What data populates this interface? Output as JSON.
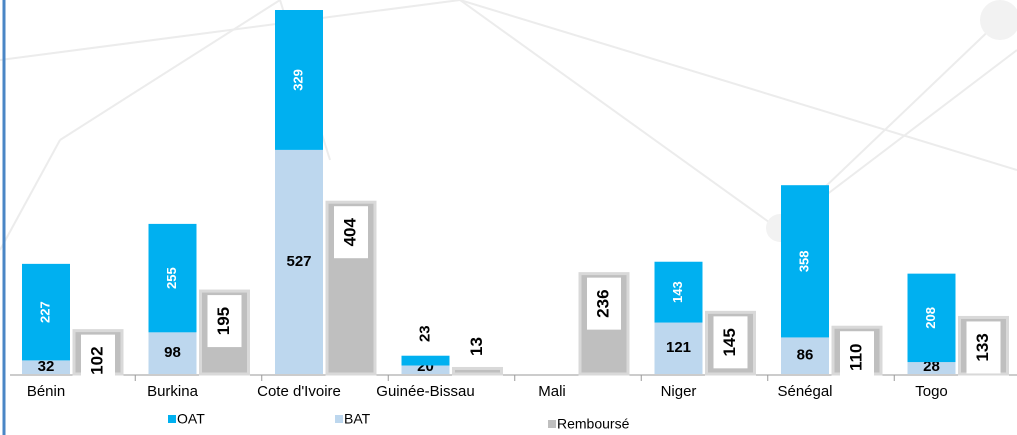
{
  "chart_data": {
    "type": "bar",
    "categories": [
      "Bénin",
      "Burkina",
      "Cote d'Ivoire",
      "Guinée-Bissau",
      "Mali",
      "Niger",
      "Sénégal",
      "Togo"
    ],
    "series": [
      {
        "name": "OAT",
        "color": "#00b0f0",
        "values": [
          227,
          255,
          329,
          23,
          null,
          143,
          358,
          208
        ]
      },
      {
        "name": "BAT",
        "color": "#bdd7ee",
        "values": [
          32,
          98,
          527,
          20,
          null,
          121,
          86,
          28
        ]
      },
      {
        "name": "Remboursé",
        "color": "#bfbfbf",
        "values": [
          102,
          195,
          404,
          13,
          236,
          145,
          110,
          133
        ]
      }
    ]
  }
}
